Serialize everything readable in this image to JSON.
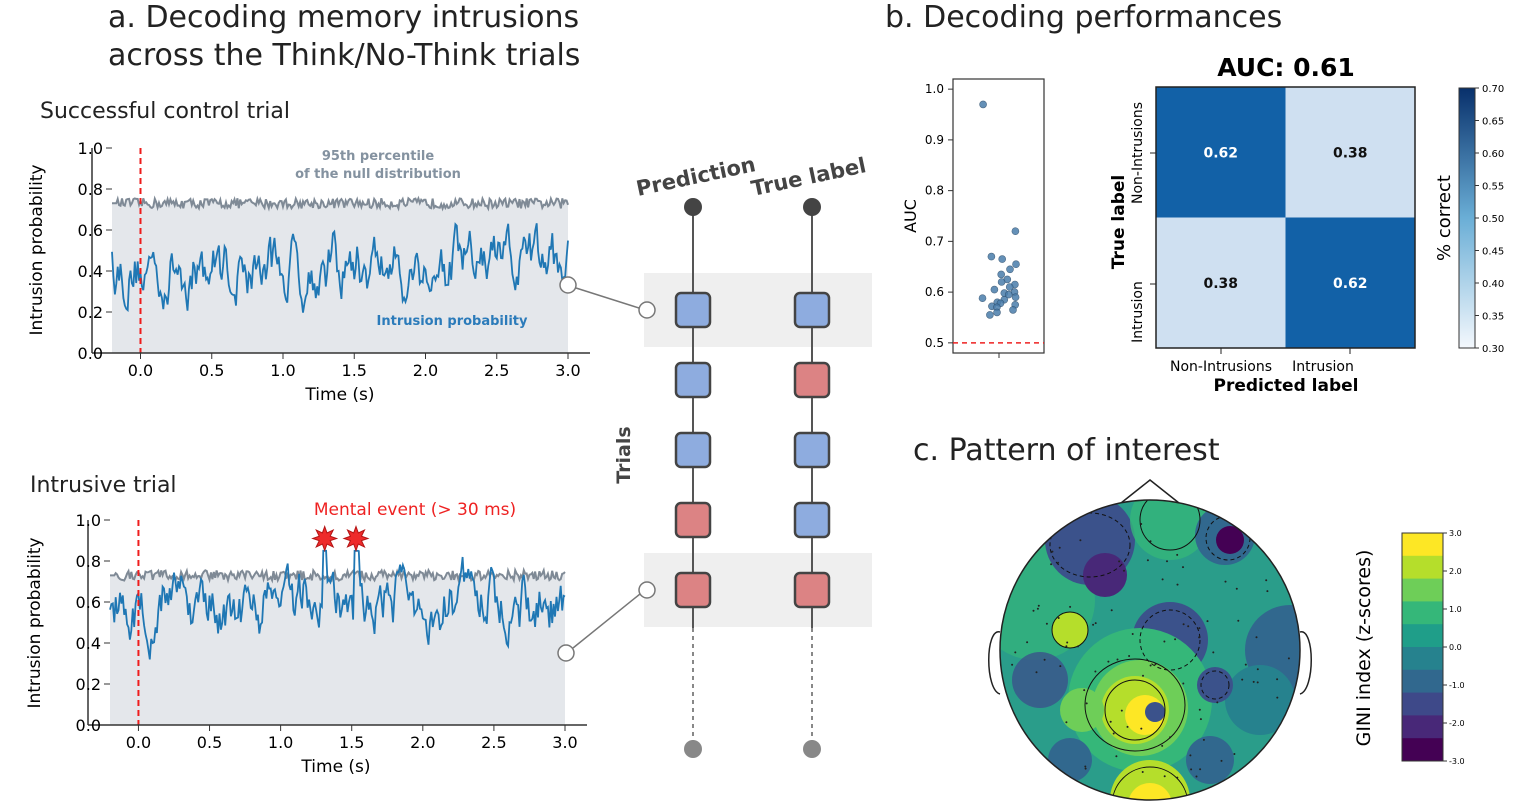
{
  "panel_a": {
    "title_line1": "a. Decoding memory intrusions",
    "title_line2": "across the Think/No-Think trials",
    "top": {
      "subtitle": "Successful control trial",
      "null_label_line1": "95th percentile",
      "null_label_line2": "of the null distribution",
      "series_label": "Intrusion probability"
    },
    "bottom": {
      "subtitle": "Intrusive trial",
      "event_label": "Mental event (> 30 ms)"
    },
    "trials": {
      "axis_label": "Trials",
      "col_prediction": "Prediction",
      "col_true": "True label",
      "prediction": [
        "blue",
        "blue",
        "blue",
        "red",
        "red"
      ],
      "true_label": [
        "blue",
        "red",
        "blue",
        "blue",
        "red"
      ]
    }
  },
  "panel_b": {
    "title": "b. Decoding performances",
    "cm_title": "AUC: 0.61",
    "cm_xlabel": "Predicted label",
    "cm_ylabel": "True label",
    "cm_classes": [
      "Non-Intrusions",
      "Intrusion"
    ],
    "cbar_label": "% correct"
  },
  "panel_c": {
    "title": "c. Pattern of interest",
    "cbar_label": "GINI index (z-scores)"
  },
  "colors": {
    "series": "#1f77b4",
    "null": "#7f8a96",
    "onset": "#ee1c1c",
    "pred_blue": "#8eacdf",
    "pred_red": "#dc8384",
    "cm_dark": "#1261a7",
    "cm_light": "#cfe0f1"
  },
  "chart_data": [
    {
      "type": "line",
      "id": "successful-control-trial",
      "xlabel": "Time (s)",
      "ylabel": "Intrusion probability",
      "xlim": [
        -0.2,
        3.0
      ],
      "ylim": [
        0.0,
        1.0
      ],
      "xticks": [
        "0.0",
        "0.5",
        "1.0",
        "1.5",
        "2.0",
        "2.5",
        "3.0"
      ],
      "yticks": [
        "0.0",
        "0.2",
        "0.4",
        "0.6",
        "0.8",
        "1.0"
      ],
      "onset_x": 0.0,
      "series": [
        {
          "name": "Intrusion probability",
          "role": "probability",
          "values_approx": {
            "mean": 0.42,
            "min": 0.12,
            "max": 0.66
          }
        },
        {
          "name": "95th percentile of the null distribution",
          "role": "null95",
          "values_approx": {
            "mean": 0.73,
            "min": 0.69,
            "max": 0.79
          }
        }
      ]
    },
    {
      "type": "line",
      "id": "intrusive-trial",
      "xlabel": "Time (s)",
      "ylabel": "Intrusion probability",
      "xlim": [
        -0.2,
        3.0
      ],
      "ylim": [
        0.0,
        1.0
      ],
      "xticks": [
        "0.0",
        "0.5",
        "1.0",
        "1.5",
        "2.0",
        "2.5",
        "3.0"
      ],
      "yticks": [
        "0.0",
        "0.2",
        "0.4",
        "0.6",
        "0.8",
        "1.0"
      ],
      "onset_x": 0.0,
      "events": [
        {
          "x": 1.31,
          "y": 0.91
        },
        {
          "x": 1.53,
          "y": 0.91
        }
      ],
      "series": [
        {
          "name": "Intrusion probability",
          "role": "probability",
          "values_approx": {
            "mean": 0.6,
            "min": 0.22,
            "max": 0.85
          }
        },
        {
          "name": "95th percentile of the null distribution",
          "role": "null95",
          "values_approx": {
            "mean": 0.73,
            "min": 0.69,
            "max": 0.79
          }
        }
      ]
    },
    {
      "type": "scatter",
      "id": "auc-strip",
      "ylabel": "AUC",
      "ylim": [
        0.48,
        1.02
      ],
      "yticks": [
        "0.5",
        "0.6",
        "0.7",
        "0.8",
        "0.9",
        "1.0"
      ],
      "chance_line": 0.5,
      "values": [
        0.97,
        0.72,
        0.67,
        0.665,
        0.655,
        0.645,
        0.635,
        0.625,
        0.62,
        0.615,
        0.61,
        0.605,
        0.6,
        0.598,
        0.595,
        0.59,
        0.588,
        0.585,
        0.58,
        0.578,
        0.575,
        0.572,
        0.57,
        0.565,
        0.56,
        0.555
      ]
    },
    {
      "type": "heatmap",
      "id": "confusion-matrix",
      "title": "AUC: 0.61",
      "xlabel": "Predicted label",
      "ylabel": "True label",
      "categories": [
        "Non-Intrusions",
        "Intrusion"
      ],
      "values": [
        [
          0.62,
          0.38
        ],
        [
          0.38,
          0.62
        ]
      ],
      "cbar": {
        "label": "% correct",
        "range": [
          0.3,
          0.7
        ],
        "ticks": [
          "0.30",
          "0.35",
          "0.40",
          "0.45",
          "0.50",
          "0.55",
          "0.60",
          "0.65",
          "0.70"
        ]
      }
    },
    {
      "type": "heatmap",
      "id": "topomap",
      "cbar": {
        "label": "GINI index (z-scores)",
        "range": [
          -3,
          3
        ],
        "ticks": [
          "3.0",
          "2.0",
          "1.0",
          "0.0",
          "-1.0",
          "-2.0",
          "-3.0"
        ]
      }
    }
  ]
}
